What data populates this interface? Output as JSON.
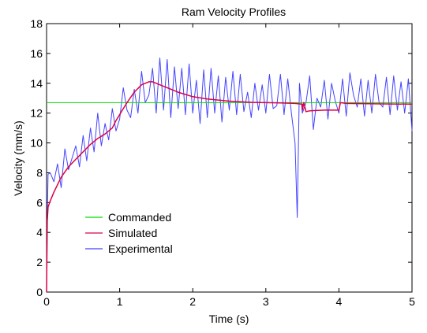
{
  "chart_data": {
    "type": "line",
    "title": "Ram Velocity Profiles",
    "xlabel": "Time (s)",
    "ylabel": "Velocity (mm/s)",
    "xlim": [
      0,
      5
    ],
    "ylim": [
      0,
      18
    ],
    "x_ticks": [
      "0",
      "1",
      "2",
      "3",
      "4",
      "5"
    ],
    "y_ticks": [
      "0",
      "2",
      "4",
      "6",
      "8",
      "10",
      "12",
      "14",
      "16",
      "18"
    ],
    "grid": false,
    "legend_position": "bottom-left",
    "series": [
      {
        "name": "Commanded",
        "color": "#00dd00",
        "x": [
          0,
          5
        ],
        "y": [
          12.7,
          12.7
        ]
      },
      {
        "name": "Simulated",
        "color": "#dd0044",
        "x": [
          0,
          0.01,
          0.02,
          0.05,
          0.1,
          0.2,
          0.3,
          0.4,
          0.5,
          0.6,
          0.7,
          0.8,
          0.9,
          0.95,
          1.0,
          1.05,
          1.1,
          1.2,
          1.3,
          1.4,
          1.45,
          1.5,
          1.6,
          1.8,
          2.0,
          2.2,
          2.5,
          2.8,
          3.0,
          3.2,
          3.4,
          3.5,
          3.5,
          3.52,
          3.55,
          3.6,
          3.8,
          4.0,
          4.02,
          4.1,
          4.5,
          5.0
        ],
        "y": [
          0,
          4.8,
          5.7,
          6.1,
          6.7,
          7.7,
          8.4,
          8.9,
          9.4,
          9.9,
          10.3,
          10.6,
          11.0,
          11.5,
          11.9,
          12.3,
          12.7,
          13.4,
          13.9,
          14.1,
          14.1,
          14.0,
          13.8,
          13.4,
          13.1,
          12.95,
          12.8,
          12.72,
          12.7,
          12.68,
          12.65,
          12.6,
          12.2,
          12.7,
          12.1,
          12.15,
          12.2,
          12.2,
          12.7,
          12.65,
          12.62,
          12.6
        ]
      },
      {
        "name": "Experimental",
        "color": "#4444ff",
        "x": [
          0,
          0.01,
          0.02,
          0.05,
          0.1,
          0.15,
          0.2,
          0.25,
          0.3,
          0.35,
          0.4,
          0.45,
          0.5,
          0.55,
          0.6,
          0.65,
          0.7,
          0.75,
          0.8,
          0.85,
          0.9,
          0.95,
          1.0,
          1.05,
          1.1,
          1.15,
          1.2,
          1.25,
          1.3,
          1.35,
          1.4,
          1.45,
          1.5,
          1.55,
          1.6,
          1.65,
          1.7,
          1.75,
          1.8,
          1.85,
          1.9,
          1.95,
          2.0,
          2.05,
          2.1,
          2.15,
          2.2,
          2.25,
          2.3,
          2.35,
          2.4,
          2.45,
          2.5,
          2.55,
          2.6,
          2.65,
          2.7,
          2.75,
          2.8,
          2.85,
          2.9,
          2.95,
          3.0,
          3.05,
          3.1,
          3.15,
          3.2,
          3.25,
          3.3,
          3.35,
          3.4,
          3.43,
          3.46,
          3.5,
          3.55,
          3.6,
          3.65,
          3.7,
          3.75,
          3.8,
          3.85,
          3.9,
          3.95,
          4.0,
          4.05,
          4.1,
          4.15,
          4.2,
          4.25,
          4.3,
          4.35,
          4.4,
          4.45,
          4.5,
          4.55,
          4.6,
          4.65,
          4.7,
          4.75,
          4.8,
          4.85,
          4.9,
          4.95,
          5.0
        ],
        "y": [
          0,
          4.8,
          7.9,
          8.0,
          7.4,
          8.6,
          7.0,
          9.6,
          8.2,
          9.0,
          9.8,
          8.4,
          10.5,
          8.8,
          11.0,
          9.4,
          12.0,
          9.8,
          11.3,
          10.2,
          12.3,
          10.8,
          11.6,
          13.7,
          12.2,
          11.7,
          13.6,
          12.0,
          14.8,
          12.7,
          13.2,
          15.0,
          12.0,
          15.7,
          12.2,
          15.6,
          11.7,
          15.1,
          12.3,
          15.0,
          11.9,
          15.3,
          12.0,
          14.2,
          11.3,
          14.9,
          11.7,
          15.0,
          12.0,
          14.5,
          11.4,
          14.4,
          12.2,
          14.8,
          11.9,
          14.6,
          12.1,
          13.4,
          11.7,
          14.0,
          12.2,
          13.9,
          12.0,
          14.6,
          12.3,
          12.5,
          14.6,
          11.9,
          14.3,
          12.0,
          10.0,
          5.0,
          14.0,
          12.0,
          12.7,
          14.5,
          10.9,
          13.0,
          12.4,
          14.2,
          11.6,
          14.0,
          12.8,
          12.0,
          14.3,
          11.8,
          14.7,
          13.2,
          12.4,
          14.3,
          11.8,
          14.2,
          12.0,
          14.6,
          12.7,
          12.4,
          14.4,
          11.9,
          14.5,
          12.2,
          14.1,
          12.0,
          14.3,
          10.8
        ]
      }
    ]
  }
}
